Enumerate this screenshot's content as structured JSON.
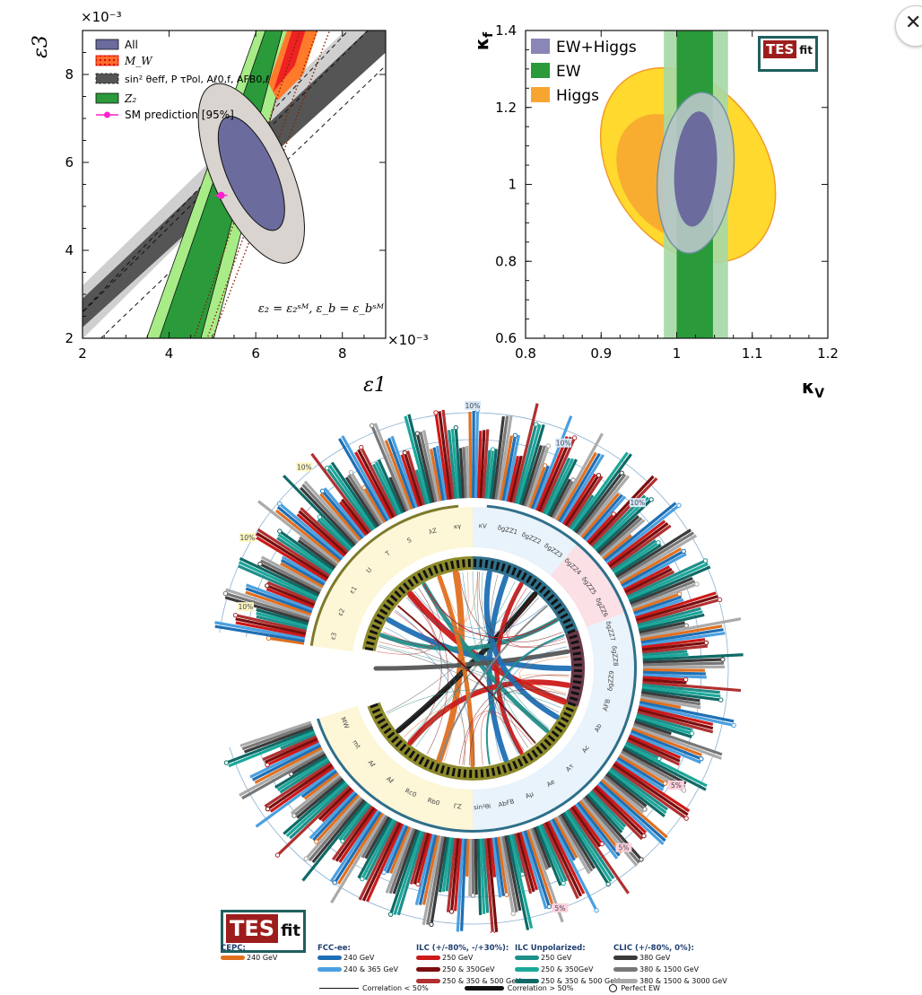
{
  "chart_data": [
    {
      "type": "scatter",
      "subtype": "confidence-contours",
      "xlabel": "ε1",
      "ylabel": "ε3",
      "x_multiplier": "×10⁻³",
      "y_multiplier": "×10⁻³",
      "xlim": [
        2,
        9
      ],
      "ylim": [
        2,
        9
      ],
      "xticks": [
        "2",
        "4",
        "6",
        "8"
      ],
      "yticks": [
        "2",
        "4",
        "6",
        "8"
      ],
      "annotation": "ε2 = ε2SM, εb = εbSM",
      "legend": [
        {
          "name": "All",
          "color": "#6b6b9e"
        },
        {
          "name": "MW",
          "color": "#ee2222"
        },
        {
          "name": "sin² θeff^lept, Pτ^Pol, Aℓ^0,f, AFB^0,ℓ",
          "color": "#555555"
        },
        {
          "name": "Z2",
          "color": "#2a9a3a"
        },
        {
          "name": "SM prediction [95%]",
          "color": "#ff22cc"
        }
      ],
      "sm_point": {
        "x": 5.2,
        "y": 5.25
      },
      "series": [
        {
          "name": "All",
          "center": [
            5.9,
            5.75
          ],
          "semi_x": 0.55,
          "semi_y": 1.4
        },
        {
          "name": "All-95",
          "center": [
            5.9,
            5.75
          ],
          "semi_x": 0.9,
          "semi_y": 2.2
        }
      ]
    },
    {
      "type": "scatter",
      "subtype": "confidence-contours",
      "xlabel": "κV",
      "ylabel": "κf",
      "xlim": [
        0.8,
        1.2
      ],
      "ylim": [
        0.6,
        1.4
      ],
      "xticks": [
        "0.8",
        "0.9",
        "1",
        "1.1",
        "1.2"
      ],
      "yticks": [
        "0.6",
        "0.8",
        "1",
        "1.2",
        "1.4"
      ],
      "legend": [
        {
          "name": "EW+Higgs",
          "color": "#8a86b6"
        },
        {
          "name": "EW",
          "color": "#2a9a3a"
        },
        {
          "name": "Higgs",
          "color": "#f7a531"
        }
      ],
      "ellipses": [
        {
          "name": "Higgs-95",
          "center": [
            1.015,
            1.05
          ],
          "semi_x": 0.14,
          "semi_y": 0.2
        },
        {
          "name": "Higgs-68",
          "center": [
            0.995,
            1.02
          ],
          "semi_x": 0.09,
          "semi_y": 0.13
        },
        {
          "name": "EW+Higgs-95",
          "center": [
            1.025,
            1.03
          ],
          "semi_x": 0.05,
          "semi_y": 0.21
        },
        {
          "name": "EW+Higgs-68",
          "center": [
            1.025,
            1.04
          ],
          "semi_x": 0.028,
          "semi_y": 0.15
        }
      ],
      "bands": [
        {
          "name": "EW-95",
          "x": [
            0.983,
            1.068
          ]
        },
        {
          "name": "EW-68",
          "x": [
            1.0,
            1.048
          ]
        }
      ]
    },
    {
      "type": "bar",
      "subtype": "circular-correlation",
      "labels": [
        "ε3",
        "ε2",
        "ε1",
        "U",
        "T",
        "S",
        "λZ",
        "κγ",
        "κV",
        "δgZZ1",
        "δgZZ2",
        "δgZZ3",
        "δgZZ4",
        "δgZZ5",
        "δgZZ6",
        "δgZZ7",
        "δgZZ8",
        "δgZZ9",
        "AFB",
        "Ab",
        "Ac",
        "Aτ",
        "Ae",
        "Aμ",
        "AbFB",
        "sin²θl",
        "ΓZ",
        "Rb0",
        "Rc0",
        "Aℓ",
        "Aℓ",
        "mt",
        "MW"
      ],
      "ring_annotations": [
        "10%",
        "10%",
        "10%",
        "10%",
        "10%",
        "10%",
        "5%",
        "5%",
        "5%"
      ],
      "legend_title_values": "Correlation < 50%, Correlation > 50%, Perfect EW"
    }
  ],
  "plot1_text": {
    "ylabel": "ε3",
    "xlabel": "ε1",
    "x_mult": "×10⁻³",
    "y_mult": "×10⁻³",
    "annotation": "ε₂ = ε₂ˢᴹ, ε_b = ε_bˢᴹ",
    "legend": [
      "All",
      "M_W",
      "sin² θeff, P τPol, Aℓ0,f, AFB0,ℓ",
      "Z₂",
      "SM prediction [95%]"
    ],
    "xticks": [
      "2",
      "4",
      "6",
      "8"
    ],
    "yticks": [
      "2",
      "4",
      "6",
      "8"
    ]
  },
  "plot2_text": {
    "ylabel": "κ",
    "ylabel_sub": "f",
    "xlabel": "κ",
    "xlabel_sub": "V",
    "legend": [
      "EW+Higgs",
      "EW",
      "Higgs"
    ],
    "xticks": [
      "0.8",
      "0.9",
      "1",
      "1.1",
      "1.2"
    ],
    "yticks": [
      "0.6",
      "0.8",
      "1",
      "1.2",
      "1.4"
    ]
  },
  "logo": {
    "tes": "TES",
    "fit": "fit"
  },
  "legend_bottom": {
    "groups": [
      {
        "title": "CEPC:",
        "items": [
          {
            "label": "240 GeV",
            "color": "#e07020"
          }
        ]
      },
      {
        "title": "FCC-ee:",
        "items": [
          {
            "label": "240 GeV",
            "color": "#1f6fb4"
          },
          {
            "label": "240 & 365 GeV",
            "color": "#4aa0e0"
          }
        ]
      },
      {
        "title": "ILC (+/-80%, -/+30%):",
        "items": [
          {
            "label": "250 GeV",
            "color": "#cc1a1a"
          },
          {
            "label": "250 & 350GeV",
            "color": "#7a0e0e"
          },
          {
            "label": "250 & 350 & 500 GeV",
            "color": "#b03030"
          }
        ]
      },
      {
        "title": "ILC Unpolarized:",
        "items": [
          {
            "label": "250 GeV",
            "color": "#1f8f8a"
          },
          {
            "label": "250 & 350GeV",
            "color": "#1aa89a"
          },
          {
            "label": "250 & 350 & 500 GeV",
            "color": "#0f6a66"
          }
        ]
      },
      {
        "title": "CLIC (+/-80%, 0%):",
        "items": [
          {
            "label": "380 GeV",
            "color": "#3a3a3a"
          },
          {
            "label": "380 & 1500 GeV",
            "color": "#777777"
          },
          {
            "label": "380 & 1500 & 3000 GeV",
            "color": "#aaaaaa"
          }
        ]
      }
    ],
    "lines": [
      "Correlation < 50%",
      "Correlation > 50%",
      "Perfect EW"
    ]
  },
  "colors": {
    "all": "#6b6b9e",
    "all95": "#d9d4cf",
    "green": "#2a9a3a",
    "light_green": "#a8ec88",
    "dark_gray": "#555555",
    "light_gray": "#cfcfcf",
    "red": "#ee2222",
    "orange": "#f7a531",
    "yellow": "#ffd92e",
    "ew_band": "#a6d8a6",
    "magenta": "#ff22cc",
    "ring_olive": "#8d8a2b",
    "ring_teal": "#2f6f8a",
    "pink_zone": "#fbe0e6",
    "yellow_zone": "#fdf6d7",
    "blue_zone": "#e8f3fb"
  }
}
